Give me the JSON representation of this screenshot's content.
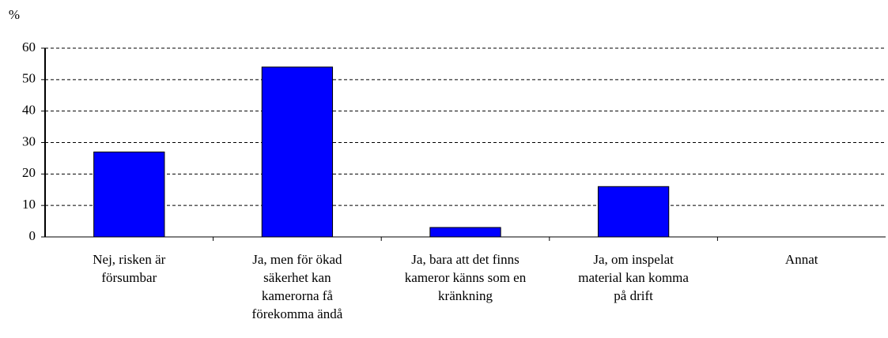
{
  "chart_data": {
    "type": "bar",
    "y_label": "%",
    "categories": [
      "Nej, risken är försumbar",
      "Ja, men för ökad säkerhet kan kamerorna få förekomma ändå",
      "Ja, bara att det finns kameror känns som en kränkning",
      "Ja, om inspelat material kan komma på drift",
      "Annat"
    ],
    "values": [
      27,
      54,
      3,
      16,
      0
    ],
    "color": "#0000ff",
    "ylim": [
      0,
      60
    ],
    "yticks": [
      0,
      10,
      20,
      30,
      40,
      50,
      60
    ],
    "grid": true
  }
}
